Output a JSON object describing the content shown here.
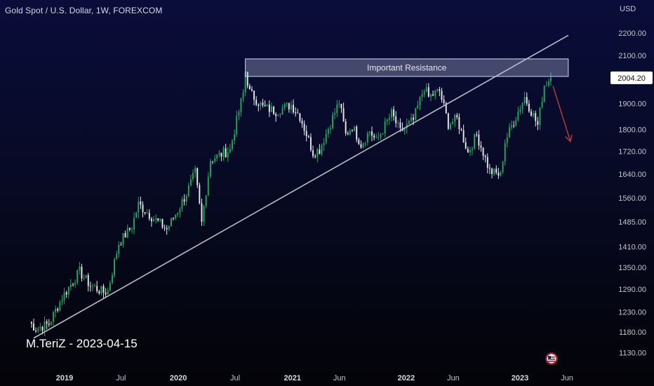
{
  "header": {
    "title": "Gold Spot / U.S. Dollar, 1W, FOREXCOM",
    "currency": "USD"
  },
  "watermark": "M.TeriZ - 2023-04-15",
  "annotations": {
    "zone_label": "Important Resistance",
    "last_price": "2004.20"
  },
  "colors": {
    "up": "#26a65b",
    "down": "#e8e8ea",
    "trendline": "#b9bbc3",
    "arrow": "#b23a3a",
    "zone_fill": "#b4b9de",
    "zone_stroke": "#d0d4f0",
    "price_tag_bg": "#ffffff"
  },
  "chart_data": {
    "type": "candlestick",
    "title": "Gold Spot / U.S. Dollar, 1W, FOREXCOM",
    "y_scale": "log",
    "y_ticks": [
      "2200.00",
      "2100.00",
      "1900.00",
      "1800.00",
      "1720.00",
      "1640.00",
      "1560.00",
      "1485.00",
      "1410.00",
      "1350.00",
      "1290.00",
      "1230.00",
      "1180.00",
      "1130.00"
    ],
    "x_ticks": [
      "2019",
      "Jul",
      "2020",
      "Jul",
      "2021",
      "Jun",
      "2022",
      "Jun",
      "2023",
      "Jun"
    ],
    "x_tick_bold": [
      "2019",
      "2020",
      "2021",
      "2022",
      "2023"
    ],
    "series": [
      {
        "keypoints": [
          [
            "2018-09-10",
            1205
          ],
          [
            "2018-10-01",
            1188
          ],
          [
            "2018-11-12",
            1200
          ],
          [
            "2018-12-24",
            1268
          ],
          [
            "2019-02-18",
            1338
          ],
          [
            "2019-03-25",
            1300
          ],
          [
            "2019-05-06",
            1282
          ],
          [
            "2019-05-20",
            1285
          ],
          [
            "2019-06-24",
            1420
          ],
          [
            "2019-08-05",
            1470
          ],
          [
            "2019-08-26",
            1540
          ],
          [
            "2019-10-14",
            1495
          ],
          [
            "2019-11-25",
            1462
          ],
          [
            "2019-12-30",
            1520
          ],
          [
            "2020-01-27",
            1575
          ],
          [
            "2020-02-24",
            1645
          ],
          [
            "2020-03-16",
            1480
          ],
          [
            "2020-04-13",
            1690
          ],
          [
            "2020-06-15",
            1725
          ],
          [
            "2020-07-27",
            1940
          ],
          [
            "2020-08-03",
            2030
          ],
          [
            "2020-08-17",
            1945
          ],
          [
            "2020-09-28",
            1885
          ],
          [
            "2020-11-09",
            1870
          ],
          [
            "2020-12-28",
            1895
          ],
          [
            "2021-01-25",
            1850
          ],
          [
            "2021-03-08",
            1715
          ],
          [
            "2021-03-29",
            1725
          ],
          [
            "2021-05-31",
            1905
          ],
          [
            "2021-06-21",
            1780
          ],
          [
            "2021-07-12",
            1812
          ],
          [
            "2021-08-09",
            1745
          ],
          [
            "2021-09-06",
            1795
          ],
          [
            "2021-09-27",
            1755
          ],
          [
            "2021-11-15",
            1860
          ],
          [
            "2021-12-13",
            1790
          ],
          [
            "2022-01-24",
            1835
          ],
          [
            "2022-02-28",
            1965
          ],
          [
            "2022-03-14",
            1925
          ],
          [
            "2022-04-18",
            1950
          ],
          [
            "2022-05-16",
            1820
          ],
          [
            "2022-06-13",
            1840
          ],
          [
            "2022-07-18",
            1715
          ],
          [
            "2022-08-15",
            1780
          ],
          [
            "2022-09-26",
            1650
          ],
          [
            "2022-10-31",
            1635
          ],
          [
            "2022-11-14",
            1755
          ],
          [
            "2023-01-16",
            1925
          ],
          [
            "2023-02-27",
            1815
          ],
          [
            "2023-03-20",
            1975
          ],
          [
            "2023-04-10",
            2004.2
          ]
        ],
        "values_note": "weekly OHLC, last close 2004.20"
      }
    ],
    "trendline": {
      "from": [
        "2018-09-24",
        1165
      ],
      "to": [
        "2023-06-05",
        2190
      ]
    },
    "resistance_zone": {
      "label": "Important Resistance",
      "low": 2010,
      "high": 2085,
      "from": "2020-08-03",
      "to": "2023-06-05"
    },
    "last_price": 2004.2,
    "projection_arrow": {
      "from": [
        "2023-04-17",
        1970
      ],
      "to": [
        "2023-06-12",
        1755
      ]
    },
    "grid": false,
    "legend": "none"
  }
}
